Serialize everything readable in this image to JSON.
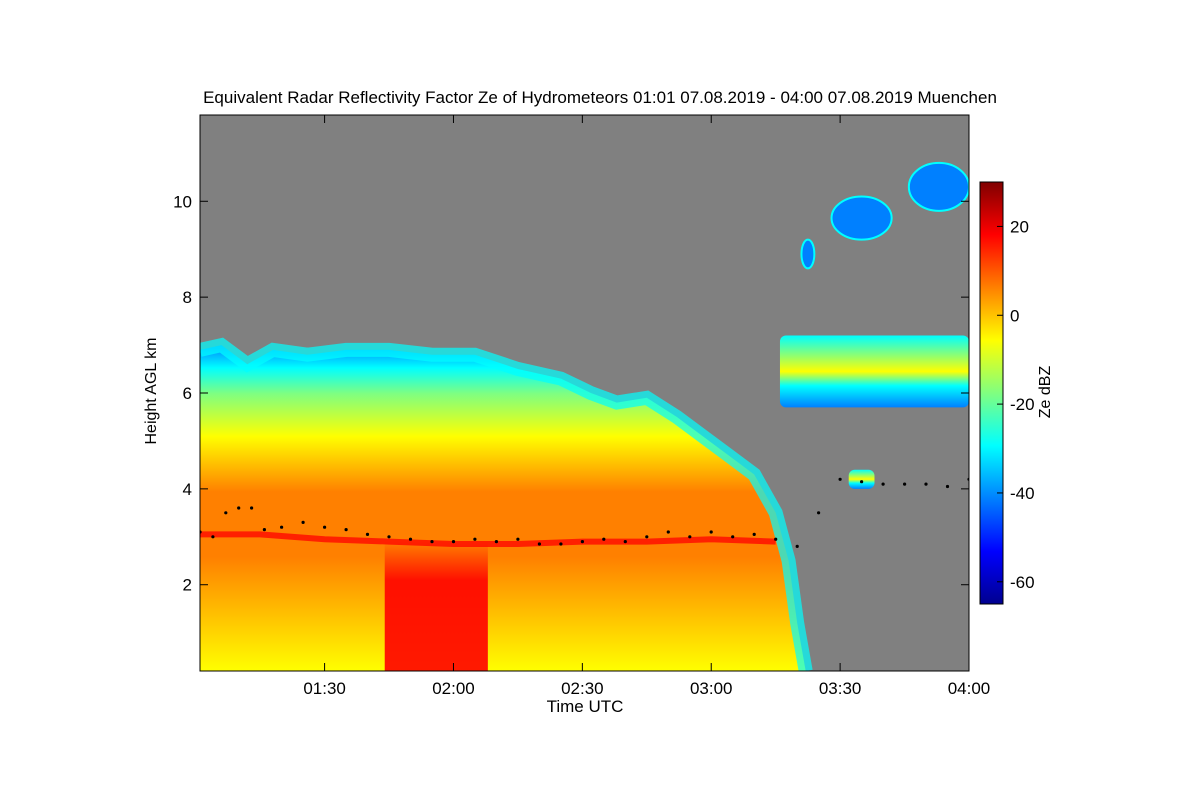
{
  "chart_data": {
    "type": "heatmap",
    "title": "Equivalent Radar Reflectivity Factor Ze of Hydrometeors   01:01 07.08.2019 - 04:00 07.08.2019 Muenchen",
    "xlabel": "Time UTC",
    "ylabel": "Height AGL km",
    "colorbar_label": "Ze dBZ",
    "x_range_minutes": [
      61,
      240
    ],
    "y_range_km": [
      0.2,
      11.8
    ],
    "x_ticks": [
      {
        "minutes": 90,
        "label": "01:30"
      },
      {
        "minutes": 120,
        "label": "02:00"
      },
      {
        "minutes": 150,
        "label": "02:30"
      },
      {
        "minutes": 180,
        "label": "03:00"
      },
      {
        "minutes": 210,
        "label": "03:30"
      },
      {
        "minutes": 240,
        "label": "04:00"
      }
    ],
    "y_ticks": [
      {
        "value": 2,
        "label": "2"
      },
      {
        "value": 4,
        "label": "4"
      },
      {
        "value": 6,
        "label": "6"
      },
      {
        "value": 8,
        "label": "8"
      },
      {
        "value": 10,
        "label": "10"
      }
    ],
    "colorbar_range_dbz": [
      -65,
      30
    ],
    "colorbar_ticks": [
      {
        "value": 20,
        "label": "20"
      },
      {
        "value": 0,
        "label": "0"
      },
      {
        "value": -20,
        "label": "-20"
      },
      {
        "value": -40,
        "label": "-40"
      },
      {
        "value": -60,
        "label": "-60"
      }
    ],
    "background_color": "#808080",
    "colormap": [
      "#00008f",
      "#0000ff",
      "#0080ff",
      "#00ffff",
      "#80ff80",
      "#ffff00",
      "#ff8000",
      "#ff0000",
      "#800000"
    ],
    "echo_top_km": [
      [
        61,
        6.9
      ],
      [
        66,
        7.0
      ],
      [
        72,
        6.6
      ],
      [
        78,
        6.9
      ],
      [
        86,
        6.8
      ],
      [
        95,
        6.9
      ],
      [
        105,
        6.9
      ],
      [
        115,
        6.8
      ],
      [
        125,
        6.8
      ],
      [
        135,
        6.5
      ],
      [
        145,
        6.3
      ],
      [
        152,
        6.0
      ],
      [
        158,
        5.8
      ],
      [
        165,
        5.9
      ],
      [
        172,
        5.5
      ],
      [
        178,
        5.1
      ],
      [
        184,
        4.7
      ],
      [
        190,
        4.3
      ],
      [
        195,
        3.5
      ],
      [
        198,
        2.5
      ],
      [
        200,
        1.2
      ],
      [
        202,
        0.2
      ]
    ],
    "upper_layer_km": [
      {
        "start": 196,
        "end": 240,
        "base": 5.7,
        "top": 7.2
      },
      {
        "start": 212,
        "end": 218,
        "base": 4.0,
        "top": 4.4
      }
    ],
    "high_cirrus_km": [
      {
        "start": 201,
        "end": 204,
        "base": 8.6,
        "top": 9.2
      },
      {
        "start": 208,
        "end": 222,
        "base": 9.2,
        "top": 10.1
      },
      {
        "start": 226,
        "end": 240,
        "base": 9.8,
        "top": 10.8
      }
    ],
    "melting_layer_km": [
      [
        61,
        3.05
      ],
      [
        75,
        3.05
      ],
      [
        90,
        2.95
      ],
      [
        105,
        2.9
      ],
      [
        120,
        2.85
      ],
      [
        135,
        2.85
      ],
      [
        150,
        2.9
      ],
      [
        165,
        2.9
      ],
      [
        180,
        2.95
      ],
      [
        195,
        2.9
      ]
    ],
    "cloud_base_points_km": [
      [
        61,
        3.1
      ],
      [
        64,
        3.0
      ],
      [
        67,
        3.5
      ],
      [
        70,
        3.6
      ],
      [
        73,
        3.6
      ],
      [
        76,
        3.15
      ],
      [
        80,
        3.2
      ],
      [
        85,
        3.3
      ],
      [
        90,
        3.2
      ],
      [
        95,
        3.15
      ],
      [
        100,
        3.05
      ],
      [
        105,
        3.0
      ],
      [
        110,
        2.95
      ],
      [
        115,
        2.9
      ],
      [
        120,
        2.9
      ],
      [
        125,
        2.95
      ],
      [
        130,
        2.9
      ],
      [
        135,
        2.95
      ],
      [
        140,
        2.85
      ],
      [
        145,
        2.85
      ],
      [
        150,
        2.9
      ],
      [
        155,
        2.95
      ],
      [
        160,
        2.9
      ],
      [
        165,
        3.0
      ],
      [
        170,
        3.1
      ],
      [
        175,
        3.0
      ],
      [
        180,
        3.1
      ],
      [
        185,
        3.0
      ],
      [
        190,
        3.05
      ],
      [
        195,
        2.95
      ],
      [
        200,
        2.8
      ],
      [
        205,
        3.5
      ],
      [
        210,
        4.2
      ],
      [
        215,
        4.15
      ],
      [
        220,
        4.1
      ],
      [
        225,
        4.1
      ],
      [
        230,
        4.1
      ],
      [
        235,
        4.05
      ],
      [
        240,
        4.2
      ]
    ],
    "precip_shaft_minutes": [
      104,
      128
    ],
    "reflectivity_note": "Strongest reflectivity (>20 dBZ) in precipitation between 01:44 and 02:08 below 3 km"
  }
}
